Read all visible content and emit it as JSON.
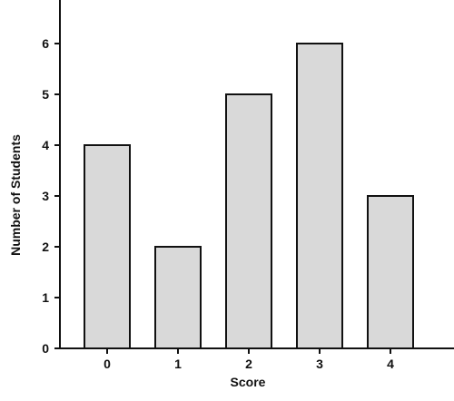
{
  "chart_data": {
    "type": "bar",
    "categories": [
      "0",
      "1",
      "2",
      "3",
      "4"
    ],
    "values": [
      4,
      2,
      5,
      6,
      3
    ],
    "title": "",
    "xlabel": "Score",
    "ylabel": "Number of Students",
    "ylim": [
      0,
      6.8
    ],
    "yticks": [
      "0",
      "1",
      "2",
      "3",
      "4",
      "5",
      "6"
    ],
    "grid": false,
    "bar_color": "#d9d9d9",
    "outline_color": "#111111"
  }
}
